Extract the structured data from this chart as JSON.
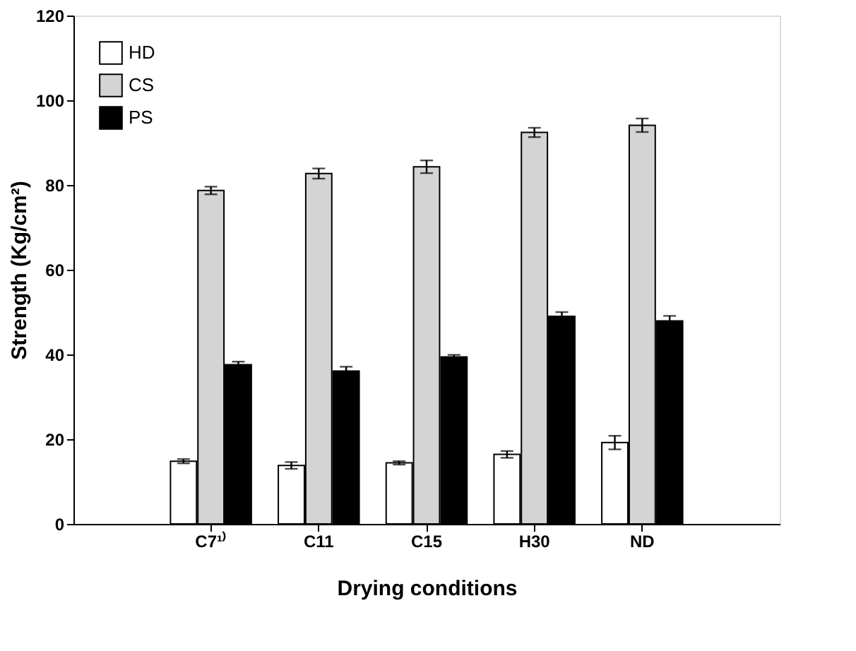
{
  "chart_data": {
    "type": "bar",
    "xlabel": "Drying conditions",
    "ylabel": "Strength (Kg/cm²)",
    "categories": [
      "C7¹⁾",
      "C11",
      "C15",
      "H30",
      "ND"
    ],
    "series": [
      {
        "name": "HD",
        "color": "#ffffff",
        "values": [
          14.8,
          13.8,
          14.4,
          16.4,
          19.2
        ],
        "errors": [
          0.5,
          0.8,
          0.4,
          0.8,
          1.6
        ]
      },
      {
        "name": "CS",
        "color": "#d4d4d4",
        "values": [
          78.7,
          82.7,
          84.3,
          92.4,
          94.1
        ],
        "errors": [
          0.9,
          1.2,
          1.5,
          1.1,
          1.6
        ]
      },
      {
        "name": "PS",
        "color": "#000000",
        "values": [
          37.6,
          36.1,
          39.4,
          49.0,
          47.9
        ],
        "errors": [
          0.7,
          1.0,
          0.5,
          1.0,
          1.2
        ]
      }
    ],
    "ylim": [
      0,
      120
    ],
    "yticks": [
      0,
      20,
      40,
      60,
      80,
      100,
      120
    ],
    "grid": false,
    "legend": "top left"
  }
}
